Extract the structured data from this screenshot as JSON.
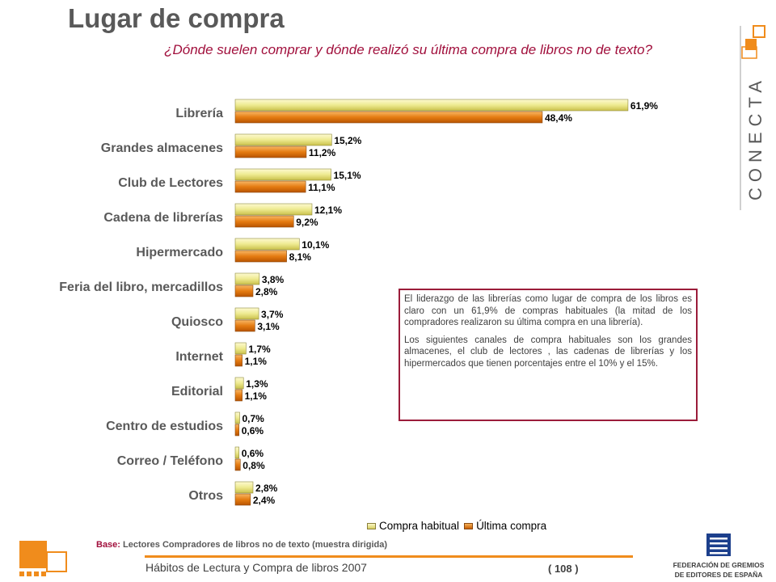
{
  "header": {
    "title": "Lugar de compra",
    "subtitle": "¿Dónde suelen comprar y dónde realizó su última compra de libros no de texto?"
  },
  "chart_data": {
    "type": "bar",
    "orientation": "horizontal",
    "categories": [
      "Librería",
      "Grandes almacenes",
      "Club de Lectores",
      "Cadena de librerías",
      "Hipermercado",
      "Feria del libro, mercadillos",
      "Quiosco",
      "Internet",
      "Editorial",
      "Centro de estudios",
      "Correo / Teléfono",
      "Otros"
    ],
    "series": [
      {
        "name": "Compra habitual",
        "color": "#e8e48a",
        "values": [
          61.9,
          15.2,
          15.1,
          12.1,
          10.1,
          3.8,
          3.7,
          1.7,
          1.3,
          0.7,
          0.6,
          2.8
        ],
        "labels": [
          "61,9%",
          "15,2%",
          "15,1%",
          "12,1%",
          "10,1%",
          "3,8%",
          "3,7%",
          "1,7%",
          "1,3%",
          "0,7%",
          "0,6%",
          "2,8%"
        ]
      },
      {
        "name": "Última compra",
        "color": "#e07810",
        "values": [
          48.4,
          11.2,
          11.1,
          9.2,
          8.1,
          2.8,
          3.1,
          1.1,
          1.1,
          0.6,
          0.8,
          2.4
        ],
        "labels": [
          "48,4%",
          "11,2%",
          "11,1%",
          "9,2%",
          "8,1%",
          "2,8%",
          "3,1%",
          "1,1%",
          "1,1%",
          "0,6%",
          "0,8%",
          "2,4%"
        ]
      }
    ],
    "legend_position": "bottom-right"
  },
  "note": {
    "p1": "El liderazgo de las librerías como lugar de compra de los libros es claro con un 61,9% de compras habituales (la mitad de los compradores realizaron su última compra en una librería).",
    "p2": "Los siguientes canales de compra habituales son los grandes almacenes, el club de lectores , las cadenas de librerías y los hipermercados que tienen porcentajes entre el 10% y el 15%."
  },
  "base": {
    "label": "Base:",
    "text": "Lectores Compradores de libros no de texto (muestra dirigida)"
  },
  "footer": {
    "text": "Hábitos de Lectura y Compra de libros 2007",
    "page": "( 108 )"
  },
  "logo": {
    "brand": "CONECTA"
  },
  "federation": {
    "line1": "FEDERACIÓN DE GREMIOS",
    "line2": "DE EDITORES DE ESPAÑA"
  },
  "colors": {
    "accent": "#a10f3c",
    "orange": "#f08c1c",
    "title_gray": "#595959",
    "fed_blue": "#1c3f8c"
  }
}
